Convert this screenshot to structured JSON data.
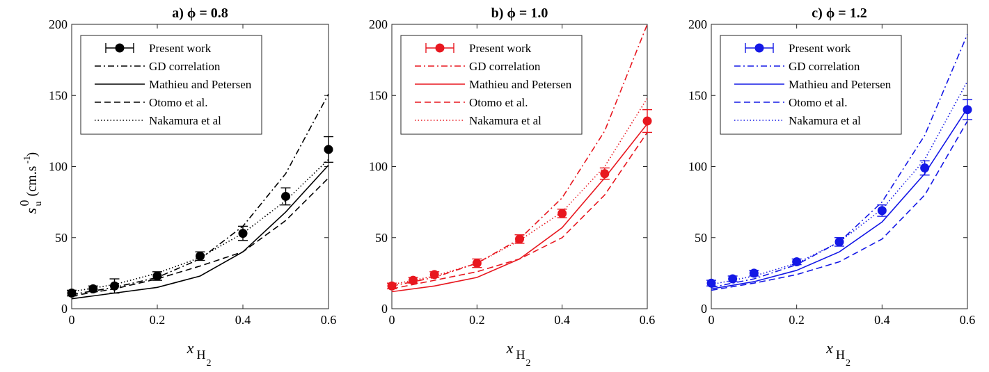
{
  "figure": {
    "ylabel": {
      "base": "s",
      "sup": "0",
      "sub": "u",
      "units": "(cm.s",
      "units_sup": "-1",
      "units_close": ")"
    },
    "xlabel": {
      "base": "x",
      "sub": "H",
      "subsub": "2"
    }
  },
  "chart_data": [
    {
      "type": "line",
      "title": "a) ϕ = 0.8",
      "color": "#000000",
      "xlim": [
        0,
        0.6
      ],
      "ylim": [
        0,
        200
      ],
      "xticks": [
        0,
        0.2,
        0.4,
        0.6
      ],
      "xtick_labels": [
        "0",
        "0.2",
        "0.4",
        "0.6"
      ],
      "yticks": [
        0,
        50,
        100,
        150,
        200
      ],
      "ytick_labels": [
        "0",
        "50",
        "100",
        "150",
        "200"
      ],
      "show_ylabel": true,
      "legend": {
        "position": "top-left",
        "entries": [
          "Present work",
          "GD correlation",
          "Mathieu and Petersen",
          "Otomo et al.",
          "Nakamura et al"
        ]
      },
      "present_work": {
        "name": "Present work",
        "x": [
          0,
          0.05,
          0.1,
          0.2,
          0.3,
          0.4,
          0.5,
          0.6
        ],
        "y": [
          11,
          14,
          16,
          23,
          37,
          53,
          79,
          112
        ],
        "err": [
          2,
          2,
          5,
          3,
          3,
          5,
          6,
          9
        ]
      },
      "series": [
        {
          "name": "GD correlation",
          "style": "dashdot",
          "x": [
            0,
            0.1,
            0.2,
            0.3,
            0.4,
            0.5,
            0.6
          ],
          "y": [
            10,
            15,
            22,
            35,
            58,
            95,
            151
          ]
        },
        {
          "name": "Mathieu and Petersen",
          "style": "solid",
          "x": [
            0,
            0.1,
            0.2,
            0.3,
            0.4,
            0.5,
            0.6
          ],
          "y": [
            7,
            11,
            15,
            23,
            40,
            68,
            101
          ]
        },
        {
          "name": "Otomo et al.",
          "style": "dashed",
          "x": [
            0,
            0.1,
            0.2,
            0.3,
            0.4,
            0.5,
            0.6
          ],
          "y": [
            9,
            14,
            21,
            30,
            40,
            62,
            92
          ]
        },
        {
          "name": "Nakamura et al",
          "style": "dotted",
          "x": [
            0,
            0.1,
            0.2,
            0.3,
            0.4,
            0.5,
            0.6
          ],
          "y": [
            12,
            17,
            25,
            36,
            53,
            76,
            105
          ]
        }
      ]
    },
    {
      "type": "line",
      "title": "b) ϕ = 1.0",
      "color": "#e8171f",
      "xlim": [
        0,
        0.6
      ],
      "ylim": [
        0,
        200
      ],
      "xticks": [
        0,
        0.2,
        0.4,
        0.6
      ],
      "xtick_labels": [
        "0",
        "0.2",
        "0.4",
        "0.6"
      ],
      "yticks": [
        0,
        50,
        100,
        150,
        200
      ],
      "ytick_labels": [
        "0",
        "50",
        "100",
        "150",
        "200"
      ],
      "show_ylabel": false,
      "legend": {
        "position": "top-left",
        "entries": [
          "Present work",
          "GD correlation",
          "Mathieu and Petersen",
          "Otomo et al.",
          "Nakamura et al"
        ]
      },
      "present_work": {
        "name": "Present work",
        "x": [
          0,
          0.05,
          0.1,
          0.2,
          0.3,
          0.4,
          0.5,
          0.6
        ],
        "y": [
          16,
          20,
          24,
          32,
          49,
          67,
          95,
          132
        ],
        "err": [
          2,
          2,
          2,
          3,
          3,
          3,
          4,
          8
        ]
      },
      "series": [
        {
          "name": "GD correlation",
          "style": "dashdot",
          "x": [
            0,
            0.1,
            0.2,
            0.3,
            0.4,
            0.5,
            0.6
          ],
          "y": [
            16,
            22,
            32,
            49,
            78,
            125,
            200
          ]
        },
        {
          "name": "Mathieu and Petersen",
          "style": "solid",
          "x": [
            0,
            0.1,
            0.2,
            0.3,
            0.4,
            0.5,
            0.6
          ],
          "y": [
            12,
            16,
            22,
            35,
            57,
            92,
            130
          ]
        },
        {
          "name": "Otomo et al.",
          "style": "dashed",
          "x": [
            0,
            0.1,
            0.2,
            0.3,
            0.4,
            0.5,
            0.6
          ],
          "y": [
            14,
            20,
            26,
            35,
            50,
            80,
            124
          ]
        },
        {
          "name": "Nakamura et al",
          "style": "dotted",
          "x": [
            0,
            0.1,
            0.2,
            0.3,
            0.4,
            0.5,
            0.6
          ],
          "y": [
            17,
            23,
            32,
            48,
            68,
            100,
            148
          ]
        }
      ]
    },
    {
      "type": "line",
      "title": "c) ϕ = 1.2",
      "color": "#1418e6",
      "xlim": [
        0,
        0.6
      ],
      "ylim": [
        0,
        200
      ],
      "xticks": [
        0,
        0.2,
        0.4,
        0.6
      ],
      "xtick_labels": [
        "0",
        "0.2",
        "0.4",
        "0.6"
      ],
      "yticks": [
        0,
        50,
        100,
        150,
        200
      ],
      "ytick_labels": [
        "0",
        "50",
        "100",
        "150",
        "200"
      ],
      "show_ylabel": false,
      "legend": {
        "position": "top-left",
        "entries": [
          "Present work",
          "GD correlation",
          "Mathieu and Petersen",
          "Otomo et al.",
          "Nakamura et al"
        ]
      },
      "present_work": {
        "name": "Present work",
        "x": [
          0,
          0.05,
          0.1,
          0.2,
          0.3,
          0.4,
          0.5,
          0.6
        ],
        "y": [
          18,
          21,
          25,
          33,
          47,
          69,
          99,
          140
        ],
        "err": [
          2,
          2,
          2,
          2,
          3,
          4,
          5,
          7
        ]
      },
      "series": [
        {
          "name": "GD correlation",
          "style": "dashdot",
          "x": [
            0,
            0.1,
            0.2,
            0.3,
            0.4,
            0.5,
            0.6
          ],
          "y": [
            15,
            21,
            31,
            47,
            75,
            122,
            193
          ]
        },
        {
          "name": "Mathieu and Petersen",
          "style": "solid",
          "x": [
            0,
            0.1,
            0.2,
            0.3,
            0.4,
            0.5,
            0.6
          ],
          "y": [
            14,
            19,
            27,
            40,
            61,
            95,
            141
          ]
        },
        {
          "name": "Otomo et al.",
          "style": "dashed",
          "x": [
            0,
            0.1,
            0.2,
            0.3,
            0.4,
            0.5,
            0.6
          ],
          "y": [
            13,
            18,
            24,
            33,
            49,
            80,
            132
          ]
        },
        {
          "name": "Nakamura et al",
          "style": "dotted",
          "x": [
            0,
            0.1,
            0.2,
            0.3,
            0.4,
            0.5,
            0.6
          ],
          "y": [
            17,
            23,
            32,
            47,
            70,
            105,
            160
          ]
        }
      ]
    }
  ]
}
